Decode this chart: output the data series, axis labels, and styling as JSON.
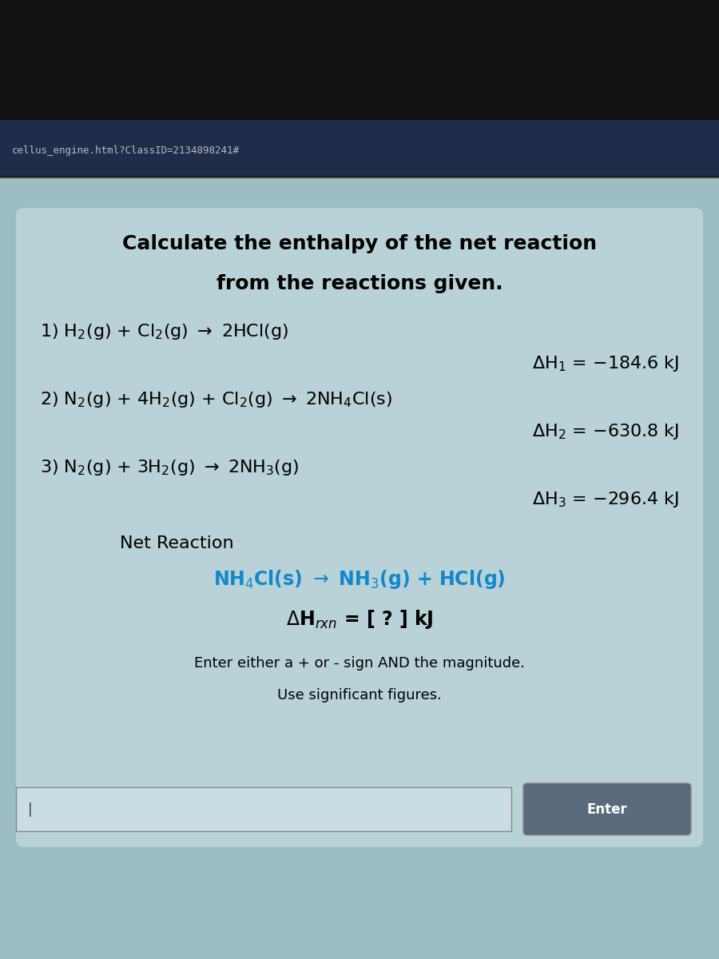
{
  "bg_top_dark": "#1a1a1a",
  "bg_bar_dark": "#2a3a5a",
  "bg_content": "#7ab8c8",
  "url_text": "cellus_engine.html?ClassID=2134898241#",
  "url_color": "#cccccc",
  "title_line1": "Calculate the enthalpy of the net reaction",
  "title_line2": "from the reactions given.",
  "title_color": "#000000",
  "title_fontsize": 18,
  "rxn1": "1) H₂(g) + Cl₂(g) → 2HCl(g)",
  "rxn1_dh": "ΔH₁ = −184.6 kJ",
  "rxn2": "2) N₂(g) + 4H₂(g) + Cl₂(g) → 2NH₄Cl(s)",
  "rxn2_dh": "ΔH₂ = −630.8 kJ",
  "rxn3": "3) N₂(g) + 3H₂(g) → 2NH₃(g)",
  "rxn3_dh": "ΔH₃ = −296.4 kJ",
  "net_label": "Net Reaction",
  "net_rxn": "NH₄Cl(s) → NH₃(g) + HCl(g)",
  "net_dh": "ΔHᵣₓₙ = [ ? ] kJ",
  "instructions1": "Enter either a + or - sign AND the magnitude.",
  "instructions2": "Use significant figures.",
  "enter_btn": "Enter",
  "text_color_black": "#000000",
  "text_color_cyan": "#00ddff",
  "text_color_gray": "#cccccc",
  "rxn_fontsize": 16,
  "net_fontsize": 16,
  "instr_fontsize": 13
}
